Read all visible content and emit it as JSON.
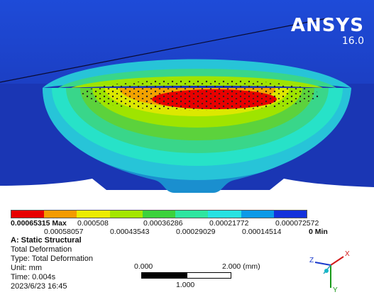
{
  "brand": {
    "name": "ANSYS",
    "version": "16.0"
  },
  "legend": {
    "colors": [
      "#e80000",
      "#f49b00",
      "#ecec00",
      "#a4e600",
      "#3cd23c",
      "#2ee6a0",
      "#27e2e2",
      "#0c9ae8",
      "#1432dc"
    ],
    "top_labels": [
      "0.00065315 Max",
      "0.000508",
      "0.00036286",
      "0.00021772",
      "0.000072572"
    ],
    "bottom_labels": [
      "0.00058057",
      "0.00043543",
      "0.00029029",
      "0.00014514",
      "0 Min"
    ]
  },
  "info": {
    "title": "A: Static Structural",
    "line1": "Total Deformation",
    "line2": "Type: Total Deformation",
    "line3": "Unit: mm",
    "line4": "Time: 0.004s",
    "line5": "2023/6/23 16:45"
  },
  "scale": {
    "left_label": "0.000",
    "right_label": "2.000 (mm)",
    "mid_label": "1.000"
  },
  "triad": {
    "x": "X",
    "y": "Y",
    "z": "Z"
  }
}
